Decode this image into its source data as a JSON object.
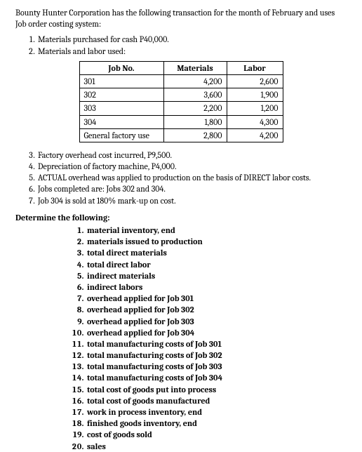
{
  "intro": "Bounty Hunter Corporation has the following transaction for the month of February and uses Job order costing system:",
  "list1": {
    "i1": "Materials purchased for cash P40,000.",
    "i2": "Materials and labor used:"
  },
  "table": {
    "headers": {
      "c1": "Job No.",
      "c2": "Materials",
      "c3": "Labor"
    },
    "rows": [
      {
        "job": "301",
        "materials": "4,200",
        "labor": "2,600"
      },
      {
        "job": "302",
        "materials": "3,600",
        "labor": "1,900"
      },
      {
        "job": "303",
        "materials": "2,200",
        "labor": "1,200"
      },
      {
        "job": "304",
        "materials": "1,800",
        "labor": "4,300"
      },
      {
        "job": "General factory use",
        "materials": "2,800",
        "labor": "4,200"
      }
    ],
    "col_widths": {
      "c1": 120,
      "c2": 90,
      "c3": 80
    },
    "border_color": "#000000",
    "font_size": 12
  },
  "list2": {
    "i3": "Factory overhead cost incurred, P9,500.",
    "i4": "Depreciation of factory machine, P4,000.",
    "i5": "ACTUAL overhead was applied to production on the basis of DIRECT labor costs.",
    "i6": "Jobs completed are: Jobs 302 and 304.",
    "i7": "Job 304 is sold at 180% mark-up on cost."
  },
  "determine_heading": "Determine the following:",
  "determine": {
    "d1": "material inventory, end",
    "d2": "materials issued to production",
    "d3": "total direct materials",
    "d4": "total direct labor",
    "d5": "indirect materials",
    "d6": "indirect labors",
    "d7": "overhead applied for Job 301",
    "d8": "overhead applied for Job 302",
    "d9": "overhead applied for Job 303",
    "d10": "overhead applied for Job 304",
    "d11": "total manufacturing costs of Job 301",
    "d12": "total manufacturing costs of Job 302",
    "d13": "total manufacturing costs of Job 303",
    "d14": "total manufacturing costs of Job 304",
    "d15": "total cost of goods put into process",
    "d16": "total cost of goods manufactured",
    "d17": "work in process inventory, end",
    "d18": "finished goods inventory, end",
    "d19": "cost of goods sold",
    "d20": "sales"
  },
  "style": {
    "background_color": "#ffffff",
    "text_color": "#000000",
    "font_family": "Cambria, Georgia, serif",
    "body_font_size": 12
  }
}
